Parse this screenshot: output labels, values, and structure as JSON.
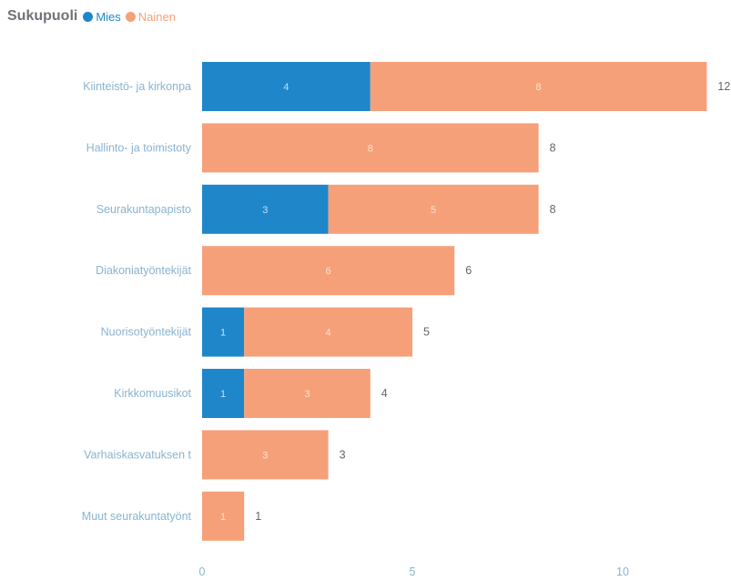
{
  "chart_data": {
    "type": "bar",
    "orientation": "horizontal",
    "stacked": true,
    "legend_title": "Sukupuoli",
    "categories": [
      "Kiinteistö- ja kirkonpa",
      "Hallinto- ja toimistoty",
      "Seurakuntapapisto",
      "Diakoniatyöntekijät",
      "Nuorisotyöntekijät",
      "Kirkkomuusikot",
      "Varhaiskasvatuksen t",
      "Muut seurakuntatyönt"
    ],
    "series": [
      {
        "name": "Mies",
        "color": "#1f86c9",
        "values": [
          4,
          0,
          3,
          0,
          1,
          1,
          0,
          0
        ]
      },
      {
        "name": "Nainen",
        "color": "#f6a07a",
        "values": [
          8,
          8,
          5,
          6,
          4,
          3,
          3,
          1
        ]
      }
    ],
    "totals": [
      12,
      8,
      8,
      6,
      5,
      4,
      3,
      1
    ],
    "x_ticks": [
      "0",
      "5",
      "10"
    ],
    "xlim": [
      0,
      12
    ],
    "grid": false,
    "legend_position": "top-left"
  }
}
